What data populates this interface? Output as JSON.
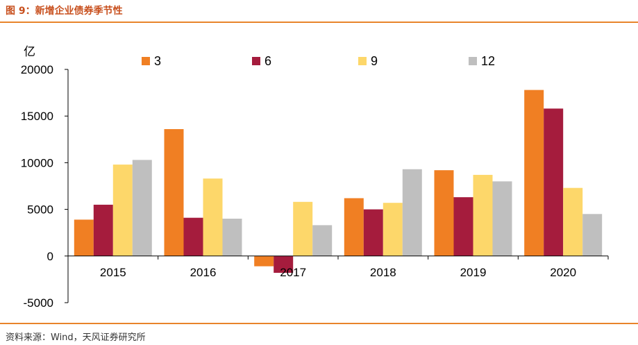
{
  "header": {
    "title": "图 9：新增企业债券季节性"
  },
  "footer": {
    "source": "资料来源：Wind，天风证券研究所"
  },
  "colors": {
    "rule": "#e8842a",
    "title": "#c8501e"
  },
  "chart_data": {
    "type": "bar",
    "title": "",
    "xlabel": "",
    "ylabel": "亿",
    "categories": [
      "2015",
      "2016",
      "2017",
      "2018",
      "2019",
      "2020"
    ],
    "series": [
      {
        "name": "3",
        "color": "#f07f23",
        "values": [
          3900,
          13600,
          -1100,
          6200,
          9200,
          17800
        ]
      },
      {
        "name": "6",
        "color": "#a51c3d",
        "values": [
          5500,
          4100,
          -1800,
          5000,
          6300,
          15800
        ]
      },
      {
        "name": "9",
        "color": "#fdd76a",
        "values": [
          9800,
          8300,
          5800,
          5700,
          8700,
          7300
        ]
      },
      {
        "name": "12",
        "color": "#bfbfbf",
        "values": [
          10300,
          4000,
          3300,
          9300,
          8000,
          4500
        ]
      }
    ],
    "ylim": [
      -5000,
      20000
    ],
    "yticks": [
      -5000,
      0,
      5000,
      10000,
      15000,
      20000
    ],
    "grid": false,
    "legend": "top"
  }
}
